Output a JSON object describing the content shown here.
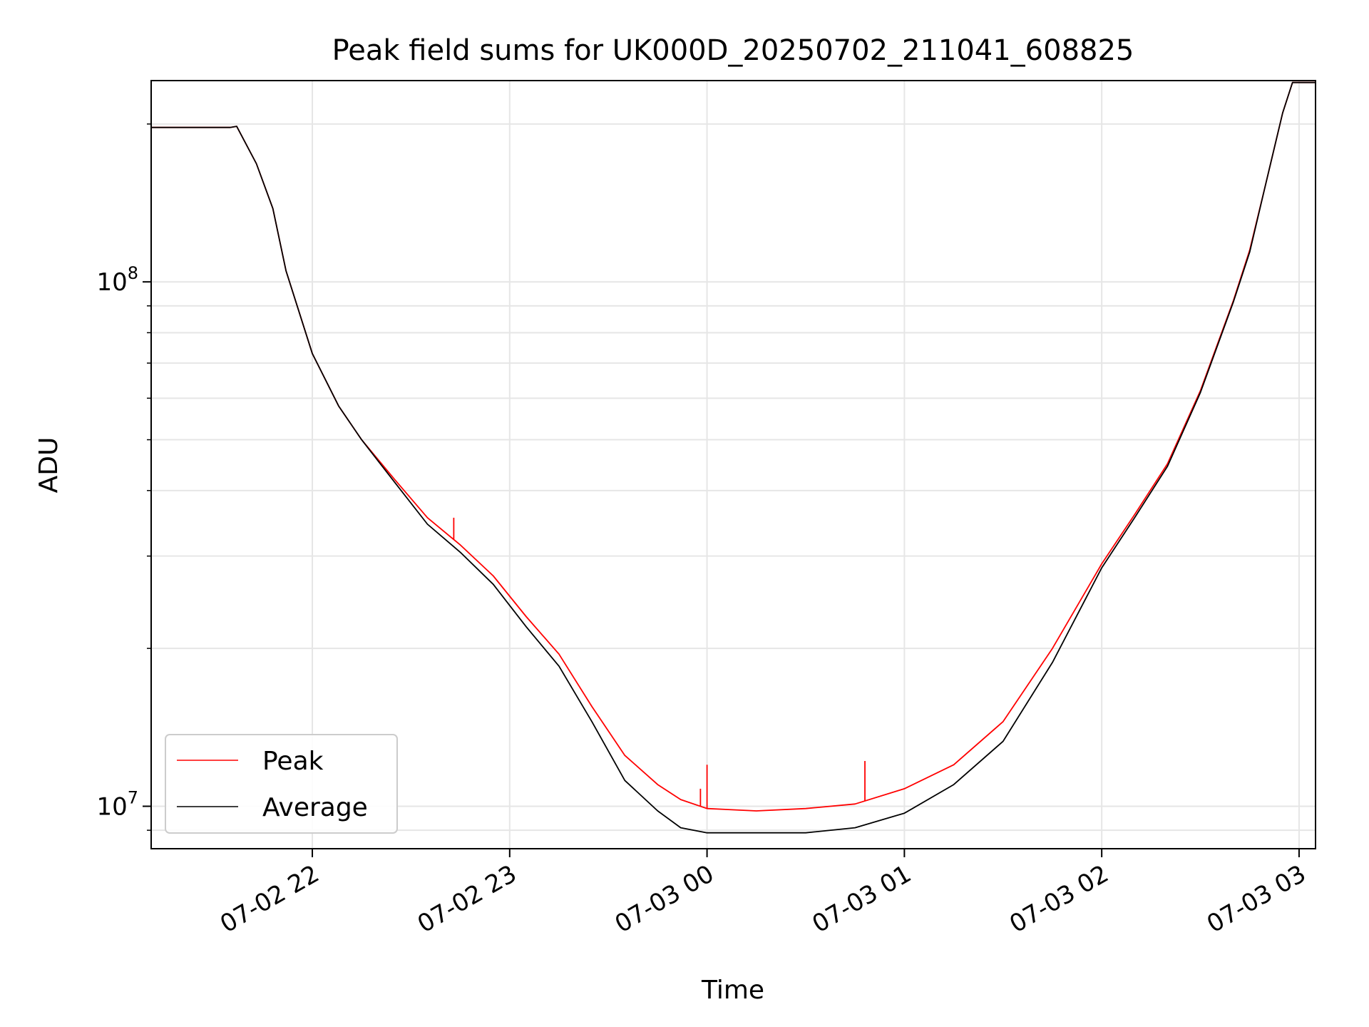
{
  "chart_data": {
    "type": "line",
    "title": "Peak field sums for UK000D_20250702_211041_608825",
    "xlabel": "Time",
    "ylabel": "ADU",
    "x_scale": "time",
    "y_scale": "log",
    "xlim": [
      "2025-07-02 21:11",
      "2025-07-03 03:05"
    ],
    "ylim": [
      8300000,
      242000000
    ],
    "grid": true,
    "legend": "lower-left",
    "x_ticks": [
      {
        "value": "2025-07-02 22:00",
        "label": "07-02 22"
      },
      {
        "value": "2025-07-02 23:00",
        "label": "07-02 23"
      },
      {
        "value": "2025-07-03 00:00",
        "label": "07-03 00"
      },
      {
        "value": "2025-07-03 01:00",
        "label": "07-03 01"
      },
      {
        "value": "2025-07-03 02:00",
        "label": "07-03 02"
      },
      {
        "value": "2025-07-03 03:00",
        "label": "07-03 03"
      }
    ],
    "y_ticks": [
      {
        "value": 10000000,
        "base": "10",
        "exp": "7"
      },
      {
        "value": 100000000,
        "base": "10",
        "exp": "8"
      }
    ],
    "series": [
      {
        "name": "Peak",
        "color": "#ff0000",
        "x": [
          "2025-07-02 21:11",
          "2025-07-02 21:20",
          "2025-07-02 21:35",
          "2025-07-02 21:37",
          "2025-07-02 21:43",
          "2025-07-02 21:48",
          "2025-07-02 21:52",
          "2025-07-02 22:00",
          "2025-07-02 22:08",
          "2025-07-02 22:15",
          "2025-07-02 22:25",
          "2025-07-02 22:35",
          "2025-07-02 22:45",
          "2025-07-02 22:55",
          "2025-07-02 23:05",
          "2025-07-02 23:15",
          "2025-07-02 23:25",
          "2025-07-02 23:35",
          "2025-07-02 23:45",
          "2025-07-02 23:52",
          "2025-07-03 00:00",
          "2025-07-03 00:15",
          "2025-07-03 00:30",
          "2025-07-03 00:45",
          "2025-07-03 01:00",
          "2025-07-03 01:15",
          "2025-07-03 01:30",
          "2025-07-03 01:45",
          "2025-07-03 02:00",
          "2025-07-03 02:10",
          "2025-07-03 02:20",
          "2025-07-03 02:30",
          "2025-07-03 02:40",
          "2025-07-03 02:45",
          "2025-07-03 02:50",
          "2025-07-03 02:55",
          "2025-07-03 02:58",
          "2025-07-03 03:05"
        ],
        "y": [
          197000000,
          197000000,
          197000000,
          198000000,
          168000000,
          138000000,
          105000000,
          73000000,
          58000000,
          50000000,
          42000000,
          35500000,
          31500000,
          27500000,
          23000000,
          19500000,
          15500000,
          12500000,
          11000000,
          10300000,
          9900000,
          9800000,
          9900000,
          10100000,
          10800000,
          12000000,
          14500000,
          20000000,
          29000000,
          36000000,
          45000000,
          62000000,
          92000000,
          115000000,
          155000000,
          210000000,
          240000000,
          240000000
        ]
      },
      {
        "name": "Average",
        "color": "#000000",
        "x": [
          "2025-07-02 21:11",
          "2025-07-02 21:20",
          "2025-07-02 21:35",
          "2025-07-02 21:37",
          "2025-07-02 21:43",
          "2025-07-02 21:48",
          "2025-07-02 21:52",
          "2025-07-02 22:00",
          "2025-07-02 22:08",
          "2025-07-02 22:15",
          "2025-07-02 22:25",
          "2025-07-02 22:35",
          "2025-07-02 22:45",
          "2025-07-02 22:55",
          "2025-07-02 23:05",
          "2025-07-02 23:15",
          "2025-07-02 23:25",
          "2025-07-02 23:35",
          "2025-07-02 23:45",
          "2025-07-02 23:52",
          "2025-07-03 00:00",
          "2025-07-03 00:15",
          "2025-07-03 00:30",
          "2025-07-03 00:45",
          "2025-07-03 01:00",
          "2025-07-03 01:15",
          "2025-07-03 01:30",
          "2025-07-03 01:45",
          "2025-07-03 02:00",
          "2025-07-03 02:10",
          "2025-07-03 02:20",
          "2025-07-03 02:30",
          "2025-07-03 02:40",
          "2025-07-03 02:45",
          "2025-07-03 02:50",
          "2025-07-03 02:55",
          "2025-07-03 02:58",
          "2025-07-03 03:05"
        ],
        "y": [
          197000000,
          197000000,
          197000000,
          198000000,
          168000000,
          138000000,
          105000000,
          73000000,
          58000000,
          50000000,
          41500000,
          34500000,
          30500000,
          26500000,
          22000000,
          18500000,
          14500000,
          11200000,
          9800000,
          9100000,
          8900000,
          8900000,
          8900000,
          9100000,
          9700000,
          11000000,
          13300000,
          18800000,
          28500000,
          35500000,
          44500000,
          61500000,
          91500000,
          114000000,
          155000000,
          210000000,
          240000000,
          240000000
        ]
      }
    ],
    "spikes": [
      {
        "series": "Peak",
        "x": "2025-07-02 22:43",
        "y": 35500000
      },
      {
        "series": "Peak",
        "x": "2025-07-02 23:37",
        "y": 12200000
      },
      {
        "series": "Peak",
        "x": "2025-07-02 23:58",
        "y": 10800000
      },
      {
        "series": "Peak",
        "x": "2025-07-03 00:00",
        "y": 12000000
      },
      {
        "series": "Peak",
        "x": "2025-07-03 00:48",
        "y": 12200000
      }
    ]
  }
}
